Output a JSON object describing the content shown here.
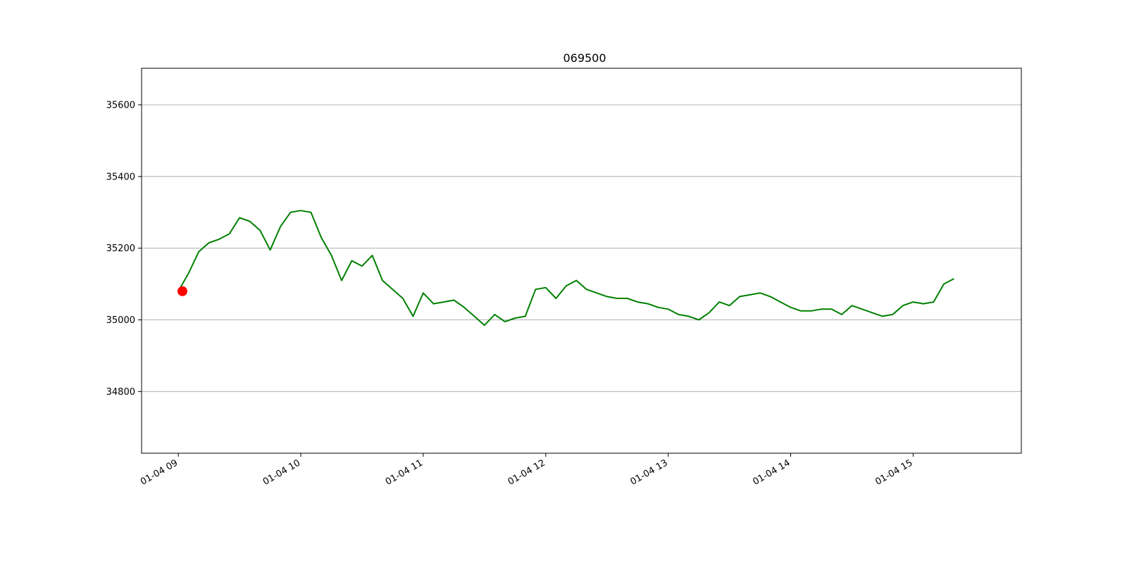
{
  "chart_data": {
    "type": "line",
    "title": "069500",
    "xlabel": "",
    "ylabel": "",
    "x_tick_labels": [
      "01-04 09",
      "01-04 10",
      "01-04 11",
      "01-04 12",
      "01-04 13",
      "01-04 14",
      "01-04 15"
    ],
    "x_ticks_hours": [
      9,
      10,
      11,
      12,
      13,
      14,
      15
    ],
    "y_ticks": [
      34800,
      35000,
      35200,
      35400,
      35600
    ],
    "y_tick_labels": [
      "34800",
      "35000",
      "35200",
      "35400",
      "35600"
    ],
    "xlim": [
      "01-04 08:42",
      "01-04 15:53"
    ],
    "ylim": [
      34628,
      35702
    ],
    "grid": "horizontal",
    "series": [
      {
        "color": "#008000",
        "x": [
          "09:00",
          "09:05",
          "09:10",
          "09:15",
          "09:20",
          "09:25",
          "09:30",
          "09:35",
          "09:40",
          "09:45",
          "09:50",
          "09:55",
          "10:00",
          "10:05",
          "10:10",
          "10:15",
          "10:20",
          "10:25",
          "10:30",
          "10:35",
          "10:40",
          "10:45",
          "10:50",
          "10:55",
          "11:00",
          "11:05",
          "11:10",
          "11:15",
          "11:20",
          "11:25",
          "11:30",
          "11:35",
          "11:40",
          "11:45",
          "11:50",
          "11:55",
          "12:00",
          "12:05",
          "12:10",
          "12:15",
          "12:20",
          "12:25",
          "12:30",
          "12:35",
          "12:40",
          "12:45",
          "12:50",
          "12:55",
          "13:00",
          "13:05",
          "13:10",
          "13:15",
          "13:20",
          "13:25",
          "13:30",
          "13:35",
          "13:40",
          "13:45",
          "13:50",
          "13:55",
          "14:00",
          "14:05",
          "14:10",
          "14:15",
          "14:20",
          "14:25",
          "14:30",
          "14:35",
          "14:40",
          "14:45",
          "14:50",
          "14:55",
          "15:00",
          "15:05",
          "15:10",
          "15:15",
          "15:20"
        ],
        "values": [
          35080,
          35130,
          35190,
          35215,
          35225,
          35240,
          35285,
          35275,
          35250,
          35195,
          35260,
          35300,
          35305,
          35300,
          35230,
          35180,
          35110,
          35165,
          35150,
          35180,
          35110,
          35085,
          35060,
          35010,
          35075,
          35045,
          35050,
          35055,
          35035,
          35010,
          34985,
          35015,
          34995,
          35005,
          35010,
          35085,
          35090,
          35060,
          35095,
          35110,
          35085,
          35075,
          35065,
          35060,
          35060,
          35050,
          35045,
          35035,
          35030,
          35015,
          35010,
          35000,
          35020,
          35050,
          35040,
          35065,
          35070,
          35075,
          35065,
          35050,
          35035,
          35025,
          35025,
          35030,
          35030,
          35015,
          35040,
          35030,
          35020,
          35010,
          35015,
          35040,
          35050,
          35045,
          35050,
          35100,
          35115
        ]
      }
    ],
    "markers": [
      {
        "x": "09:02",
        "y": 35080,
        "color": "#ff0000"
      }
    ]
  }
}
